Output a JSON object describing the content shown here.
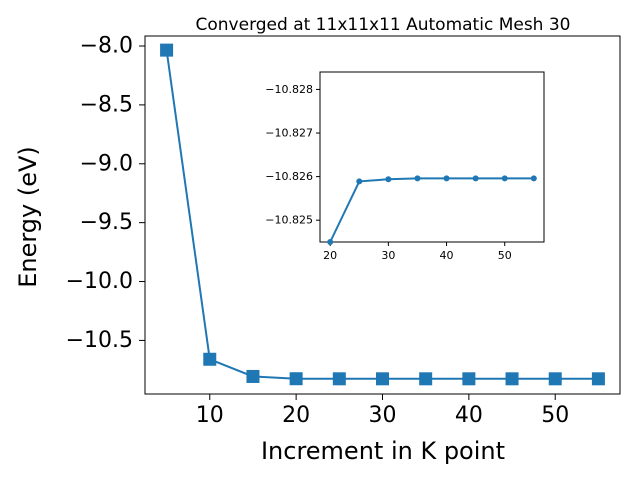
{
  "chart_data": [
    {
      "type": "line",
      "title": "Converged at 11x11x11 Automatic Mesh 30",
      "xlabel": "Increment in K point",
      "ylabel": "Energy (eV)",
      "x": [
        5,
        10,
        15,
        20,
        25,
        30,
        35,
        40,
        45,
        50,
        55
      ],
      "series": [
        {
          "values": [
            -8.035,
            -10.66,
            -10.806,
            -10.8253,
            -10.8259,
            -10.82595,
            -10.82597,
            -10.82597,
            -10.82597,
            -10.82597,
            -10.82597
          ],
          "color": "#1f77b4",
          "marker": "square"
        }
      ],
      "xlim": [
        2.5,
        57.5
      ],
      "ylim": [
        -10.955,
        -7.915
      ],
      "xticks": [
        10,
        20,
        30,
        40,
        50
      ],
      "xtick_labels": [
        "10",
        "20",
        "30",
        "40",
        "50"
      ],
      "yticks": [
        -8.0,
        -8.5,
        -9.0,
        -9.5,
        -10.0,
        -10.5
      ],
      "ytick_labels": [
        "−8.0",
        "−8.5",
        "−9.0",
        "−9.5",
        "−10.0",
        "−10.5"
      ],
      "grid": false
    },
    {
      "type": "line",
      "title": "",
      "xlabel": "",
      "ylabel": "",
      "x": [
        20,
        25,
        30,
        35,
        40,
        45,
        50,
        55
      ],
      "series": [
        {
          "values": [
            -10.8245,
            -10.82589,
            -10.82594,
            -10.82596,
            -10.82596,
            -10.82596,
            -10.82596,
            -10.82596
          ],
          "color": "#1f77b4",
          "marker": "circle"
        }
      ],
      "xlim": [
        18.25,
        56.75
      ],
      "ylim": [
        -10.8245,
        -10.8284
      ],
      "xticks": [
        20,
        30,
        40,
        50
      ],
      "xtick_labels": [
        "20",
        "30",
        "40",
        "50"
      ],
      "yticks": [
        -10.828,
        -10.827,
        -10.826,
        -10.825
      ],
      "ytick_labels": [
        "−10.828",
        "−10.827",
        "−10.826",
        "−10.825"
      ],
      "grid": false
    }
  ]
}
